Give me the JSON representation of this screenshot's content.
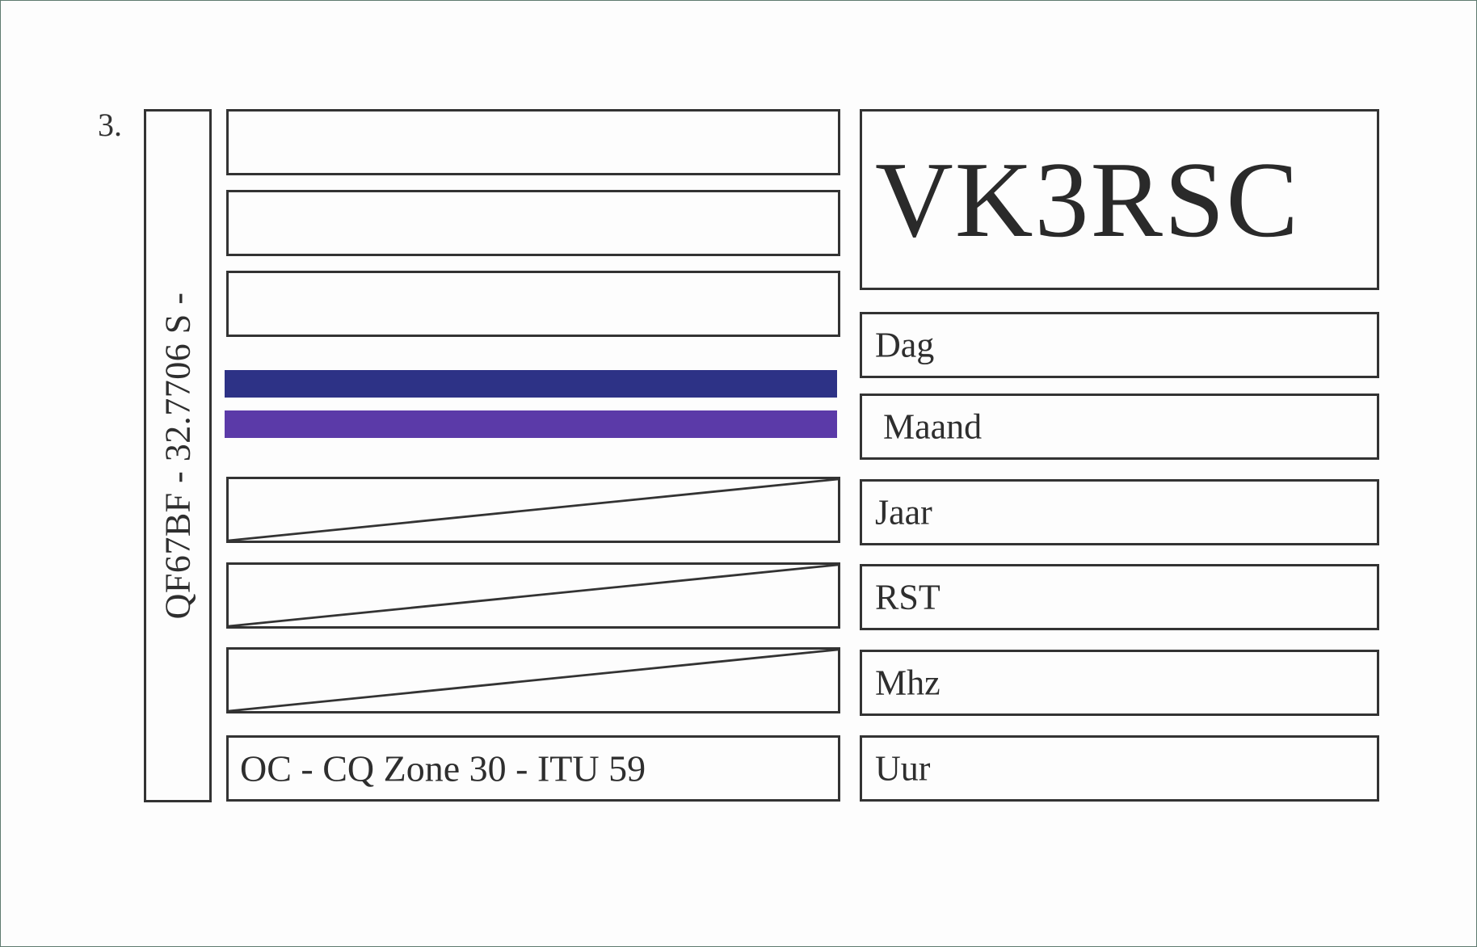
{
  "card": {
    "number": "3.",
    "locator_text": "QF67BF - 32.7706 S -",
    "zone_text": "OC - CQ Zone 30 - ITU 59",
    "callsign": "VK3RSC",
    "fields": {
      "dag": "Dag",
      "maand": "Maand",
      "jaar": "Jaar",
      "rst": "RST",
      "mhz": "Mhz",
      "uur": "Uur"
    },
    "colors": {
      "band_top": "#2d3286",
      "band_bottom": "#5b3aa8",
      "line": "#333333"
    }
  }
}
